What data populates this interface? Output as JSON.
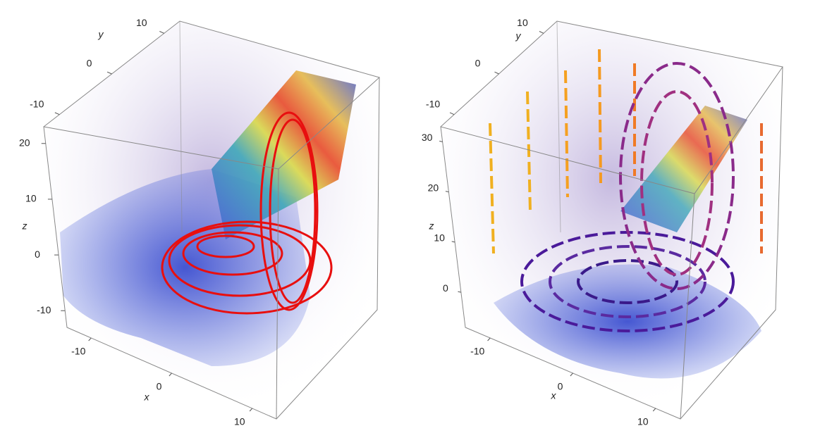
{
  "chart_data": [
    {
      "type": "volume3d",
      "xlabel": "x",
      "ylabel": "y",
      "zlabel": "z",
      "xlim": [
        -13,
        13
      ],
      "ylim": [
        -13,
        13
      ],
      "zlim": [
        -13,
        23
      ],
      "xticks": [
        -10,
        0,
        10
      ],
      "yticks": [
        -10,
        0,
        10
      ],
      "zticks": [
        -10,
        0,
        10,
        20
      ]
    },
    {
      "type": "volume3d",
      "xlabel": "x",
      "ylabel": "y",
      "zlabel": "z",
      "xlim": [
        -13,
        13
      ],
      "ylim": [
        -13,
        13
      ],
      "zlim": [
        -7,
        33
      ],
      "xticks": [
        -10,
        0,
        10
      ],
      "yticks": [
        -10,
        0,
        10
      ],
      "zticks": [
        0,
        10,
        20,
        30
      ]
    }
  ]
}
